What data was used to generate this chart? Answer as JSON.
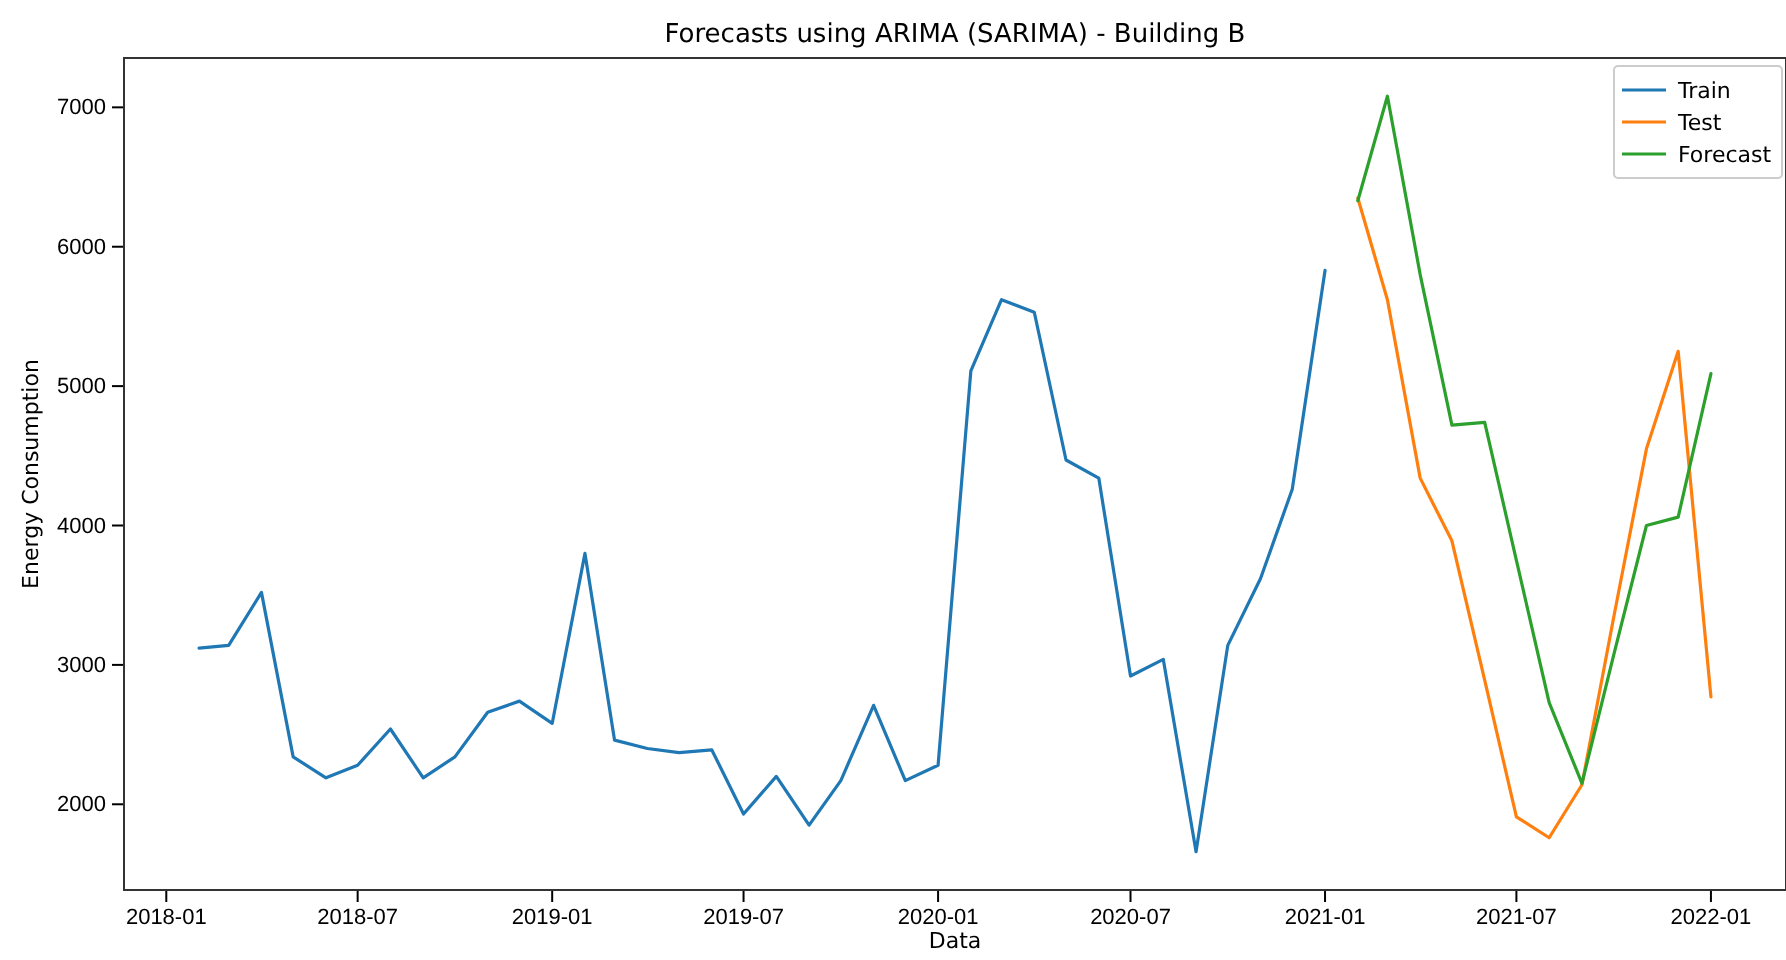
{
  "chart_data": {
    "type": "line",
    "title": "Forecasts using ARIMA (SARIMA) - Building B",
    "xlabel": "Data",
    "ylabel": "Energy Consumption",
    "xlim": [
      "2017-11-22",
      "2022-03-13"
    ],
    "xticks": [
      {
        "value": "2018-01-01",
        "label": "2018-01"
      },
      {
        "value": "2018-07-01",
        "label": "2018-07"
      },
      {
        "value": "2019-01-01",
        "label": "2019-01"
      },
      {
        "value": "2019-07-01",
        "label": "2019-07"
      },
      {
        "value": "2020-01-01",
        "label": "2020-01"
      },
      {
        "value": "2020-07-01",
        "label": "2020-07"
      },
      {
        "value": "2021-01-01",
        "label": "2021-01"
      },
      {
        "value": "2021-07-01",
        "label": "2021-07"
      },
      {
        "value": "2022-01-01",
        "label": "2022-01"
      }
    ],
    "ylim": [
      1385,
      7354
    ],
    "yticks": [
      2000,
      3000,
      4000,
      5000,
      6000,
      7000
    ],
    "grid": false,
    "legend": "top right",
    "series": [
      {
        "name": "Train",
        "color": "#1f77b4",
        "x": [
          "2018-02-01",
          "2018-03-01",
          "2018-04-01",
          "2018-05-01",
          "2018-06-01",
          "2018-07-01",
          "2018-08-01",
          "2018-09-01",
          "2018-10-01",
          "2018-11-01",
          "2018-12-01",
          "2019-01-01",
          "2019-02-01",
          "2019-03-01",
          "2019-04-01",
          "2019-05-01",
          "2019-06-01",
          "2019-07-01",
          "2019-08-01",
          "2019-09-01",
          "2019-10-01",
          "2019-11-01",
          "2019-12-01",
          "2020-01-01",
          "2020-02-01",
          "2020-03-01",
          "2020-04-01",
          "2020-05-01",
          "2020-06-01",
          "2020-07-01",
          "2020-08-01",
          "2020-09-01",
          "2020-10-01",
          "2020-11-01",
          "2020-12-01",
          "2021-01-01"
        ],
        "values": [
          3120,
          3140,
          3520,
          2340,
          2190,
          2280,
          2540,
          2190,
          2340,
          2660,
          2740,
          2580,
          3800,
          2460,
          2400,
          2370,
          2390,
          1930,
          2200,
          1850,
          2170,
          2710,
          2170,
          2280,
          5110,
          5620,
          5530,
          4470,
          4340,
          2920,
          3040,
          1660,
          3140,
          3620,
          4260,
          5830
        ]
      },
      {
        "name": "Test",
        "color": "#ff7f0e",
        "x": [
          "2021-02-01",
          "2021-03-01",
          "2021-04-01",
          "2021-05-01",
          "2021-06-01",
          "2021-07-01",
          "2021-08-01",
          "2021-09-01",
          "2021-10-01",
          "2021-11-01",
          "2021-12-01",
          "2022-01-01"
        ],
        "values": [
          6350,
          5620,
          4340,
          3890,
          2890,
          1910,
          1760,
          2140,
          3340,
          4550,
          5250,
          2770
        ]
      },
      {
        "name": "Forecast",
        "color": "#2ca02c",
        "x": [
          "2021-02-01",
          "2021-03-01",
          "2021-04-01",
          "2021-05-01",
          "2021-06-01",
          "2021-07-01",
          "2021-08-01",
          "2021-09-01",
          "2021-10-01",
          "2021-11-01",
          "2021-12-01",
          "2022-01-01"
        ],
        "values": [
          6330,
          7080,
          5800,
          4720,
          4740,
          3750,
          2730,
          2150,
          3070,
          4000,
          4060,
          5090
        ]
      }
    ]
  }
}
